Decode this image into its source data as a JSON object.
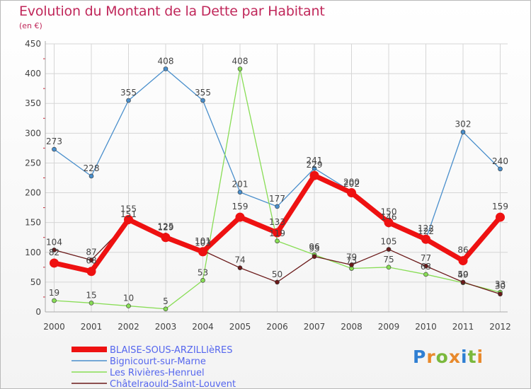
{
  "title": "Evolution du Montant de la Dette par Habitant",
  "unit": "(en €)",
  "brand": "Proxiti",
  "colors": {
    "title": "#c0275a",
    "axis_text": "#444444",
    "grid": "#d6d6d6",
    "axis_line": "#aaaaaa",
    "series": [
      "#ee1111",
      "#4a8fcc",
      "#88dd55",
      "#6b1a1a"
    ],
    "legend_text": "#5566ee",
    "tick_mark": "#cc2233"
  },
  "chart_data": {
    "type": "line",
    "title": "Evolution du Montant de la Dette par Habitant",
    "subtitle": "(en €)",
    "x": [
      "2000",
      "2001",
      "2002",
      "2003",
      "2004",
      "2005",
      "2006",
      "2007",
      "2008",
      "2009",
      "2010",
      "2011",
      "2012"
    ],
    "ylim": [
      0,
      450
    ],
    "yticks": [
      0,
      50,
      100,
      150,
      200,
      250,
      300,
      350,
      400,
      450
    ],
    "grid": true,
    "legend_position": "bottom-left",
    "series": [
      {
        "name": "BLAISE-SOUS-ARZILLIèRES",
        "values": [
          82,
          68,
          155,
          125,
          101,
          159,
          133,
          229,
          200,
          150,
          122,
          86,
          159
        ]
      },
      {
        "name": "Bignicourt-sur-Marne",
        "values": [
          273,
          228,
          355,
          408,
          355,
          201,
          177,
          241,
          202,
          146,
          122,
          302,
          240
        ]
      },
      {
        "name": "Les Rivières-Henruel",
        "values": [
          19,
          15,
          10,
          5,
          53,
          408,
          119,
          96,
          73,
          75,
          63,
          49,
          33
        ]
      },
      {
        "name": "Châtelraould-Saint-Louvent",
        "values": [
          104,
          87,
          151,
          129,
          103,
          74,
          50,
          93,
          79,
          105,
          77,
          50,
          30
        ]
      }
    ]
  }
}
